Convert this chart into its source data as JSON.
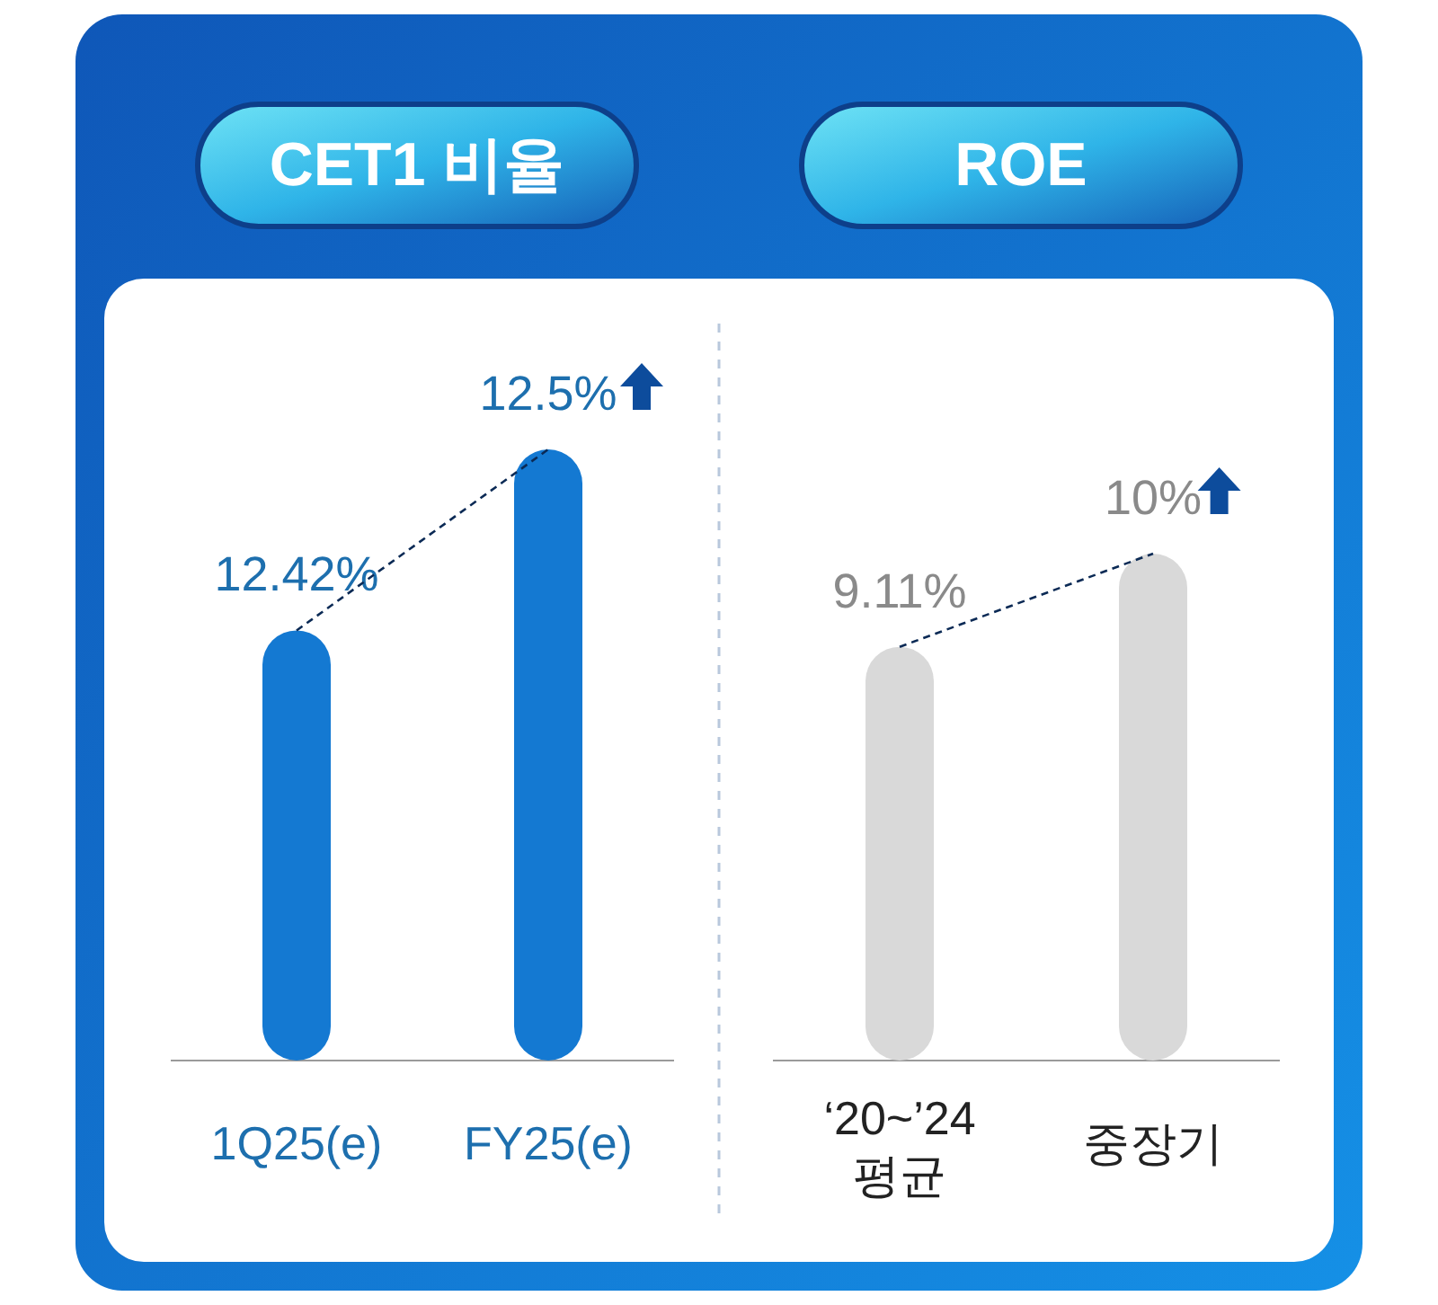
{
  "chart_data": [
    {
      "type": "bar",
      "title": "CET1 비율",
      "categories": [
        "1Q25(e)",
        "FY25(e)"
      ],
      "ylim": [
        12.23,
        12.5
      ],
      "tick_labels": "x",
      "series": [
        {
          "color": "#1479d2",
          "values": [
            12.42,
            12.5
          ],
          "value_labels": [
            "12.42%",
            "12.5%"
          ]
        },
        {
          "type": "line",
          "color": "#0b2a55",
          "values": [
            12.42,
            12.5
          ],
          "line_style": "dashed",
          "marker": "none"
        }
      ]
    },
    {
      "type": "bar",
      "title": "ROE",
      "categories": [
        "‘20~’24 평균",
        "중장기"
      ],
      "ylim": [
        5.16,
        10
      ],
      "tick_labels": "x",
      "series": [
        {
          "color": "#d9d9d9",
          "values": [
            9.11,
            10
          ],
          "value_labels": [
            "9.11%",
            "10%"
          ]
        },
        {
          "type": "line",
          "color": "#0b2a55",
          "values": [
            9.11,
            10
          ],
          "line_style": "dashed",
          "marker": "none"
        }
      ]
    }
  ]
}
